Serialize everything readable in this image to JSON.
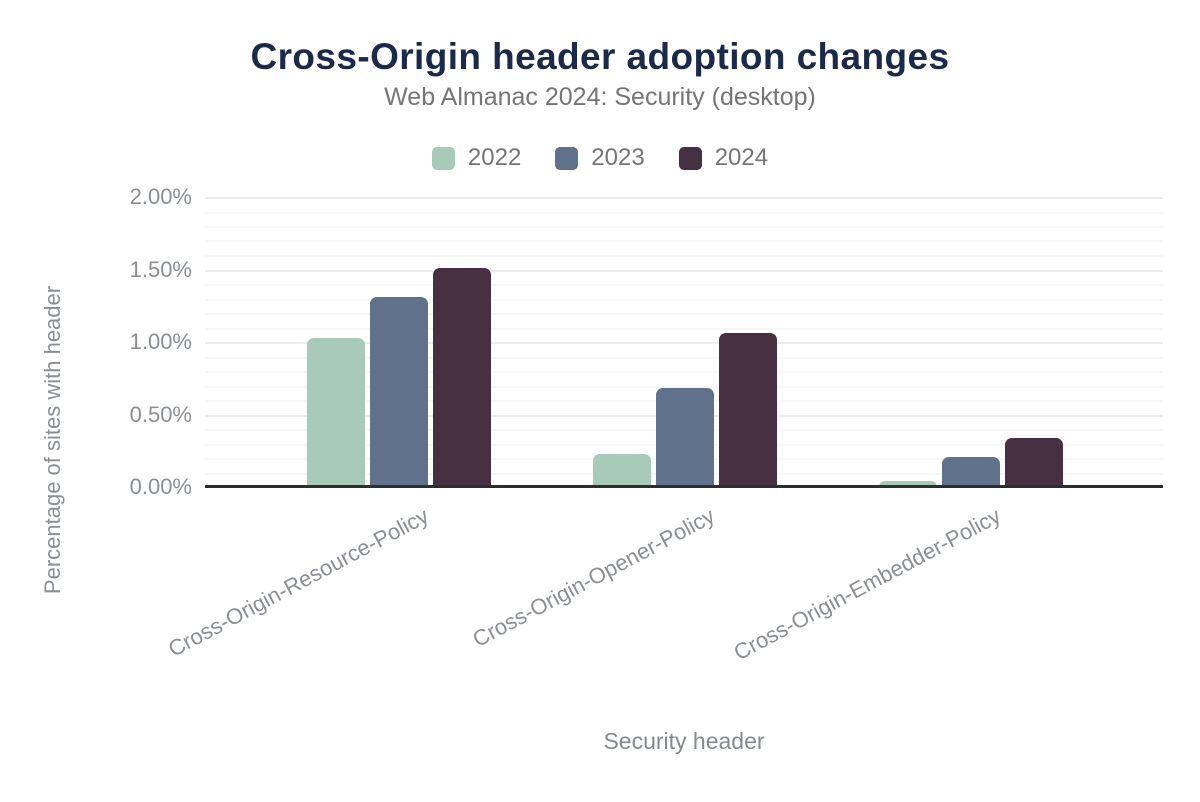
{
  "chart_data": {
    "type": "bar",
    "title": "Cross-Origin header adoption changes",
    "subtitle": "Web Almanac 2024: Security (desktop)",
    "categories": [
      "Cross-Origin-Resource-Policy",
      "Cross-Origin-Opener-Policy",
      "Cross-Origin-Embedder-Policy"
    ],
    "series": [
      {
        "name": "2022",
        "color": "#a8cabb",
        "values": [
          1.03,
          0.23,
          0.04
        ]
      },
      {
        "name": "2023",
        "color": "#60718c",
        "values": [
          1.31,
          0.68,
          0.21
        ]
      },
      {
        "name": "2024",
        "color": "#483043",
        "values": [
          1.51,
          1.06,
          0.34
        ]
      }
    ],
    "xlabel": "Security header",
    "ylabel": "Percentage of sites with header",
    "ylim": [
      0,
      2.0
    ],
    "ytick_major_step": 0.5,
    "ytick_minor_step": 0.1,
    "ytick_labels": [
      "0.00%",
      "0.50%",
      "1.00%",
      "1.50%",
      "2.00%"
    ],
    "legend_position": "top",
    "grid": "horizontal",
    "colors": {
      "title": "#1b2a4a",
      "subtitle": "#757575",
      "tick_text": "#8b8f93",
      "axis_line": "#2e2e2e",
      "grid_major": "#ececec",
      "grid_minor": "#f7f7f7",
      "background": "#ffffff"
    }
  }
}
